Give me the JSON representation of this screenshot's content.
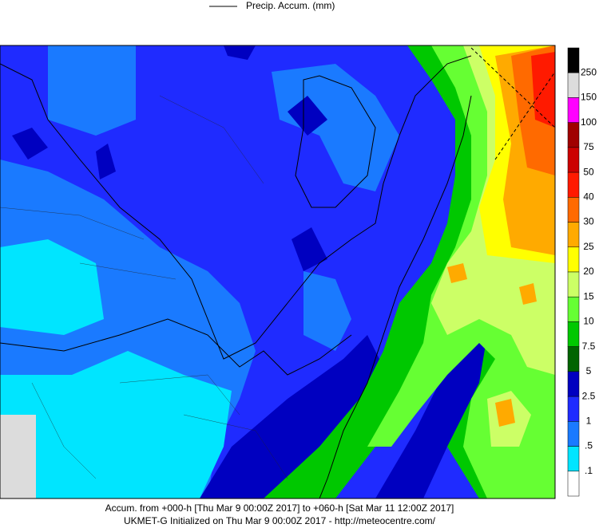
{
  "legend": {
    "title": "Precip. Accum. (mm)"
  },
  "colorbar": {
    "labels": [
      "250",
      "150",
      "100",
      "75",
      "50",
      "40",
      "30",
      "25",
      "20",
      "15",
      "10",
      "7.5",
      "5",
      "2.5",
      "1",
      ".5",
      ".1"
    ],
    "colors": [
      "#000000",
      "#dcdcdc",
      "#ff00ff",
      "#a00000",
      "#cc0000",
      "#ff1a00",
      "#ff6a00",
      "#ffaa00",
      "#ffff00",
      "#ccff66",
      "#66ff33",
      "#00c800",
      "#006400",
      "#0000c0",
      "#1f2bff",
      "#1a7aff",
      "#00e5ff",
      "#ffffff"
    ]
  },
  "footer": {
    "line1": "Accum. from +000-h [Thu Mar 9 00:00Z 2017] to +060-h [Sat Mar 11 12:00Z 2017]",
    "line2": "UKMET-G Initialized on Thu Mar 9 00:00Z 2017 - http://meteocentre.com/"
  }
}
